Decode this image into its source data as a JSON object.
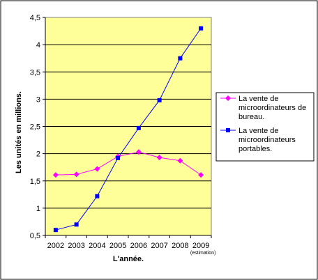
{
  "chart_data": {
    "type": "line",
    "categories": [
      "2002",
      "2003",
      "2004",
      "2005",
      "2006",
      "2007",
      "2008",
      "2009"
    ],
    "category_sublabels": {
      "2009": "(estimation)"
    },
    "series": [
      {
        "name": "La vente de microordinateurs de bureau.",
        "color": "#ff00ff",
        "marker": "diamond",
        "values": [
          1.61,
          1.62,
          1.72,
          1.95,
          2.03,
          1.93,
          1.87,
          1.61
        ]
      },
      {
        "name": "La vente de microordinateurs portables.",
        "color": "#0000ff",
        "marker": "square",
        "values": [
          0.6,
          0.7,
          1.22,
          1.92,
          2.47,
          2.98,
          3.75,
          4.3
        ]
      }
    ],
    "xlabel": "L'année.",
    "ylabel": "Les unités en millions.",
    "ylim": [
      0.5,
      4.5
    ],
    "yticks": [
      "0,5",
      "1",
      "1,5",
      "2",
      "2,5",
      "3",
      "3,5",
      "4",
      "4,5"
    ],
    "plot_background": "#ffff99",
    "grid": true,
    "legend_position": "right"
  }
}
